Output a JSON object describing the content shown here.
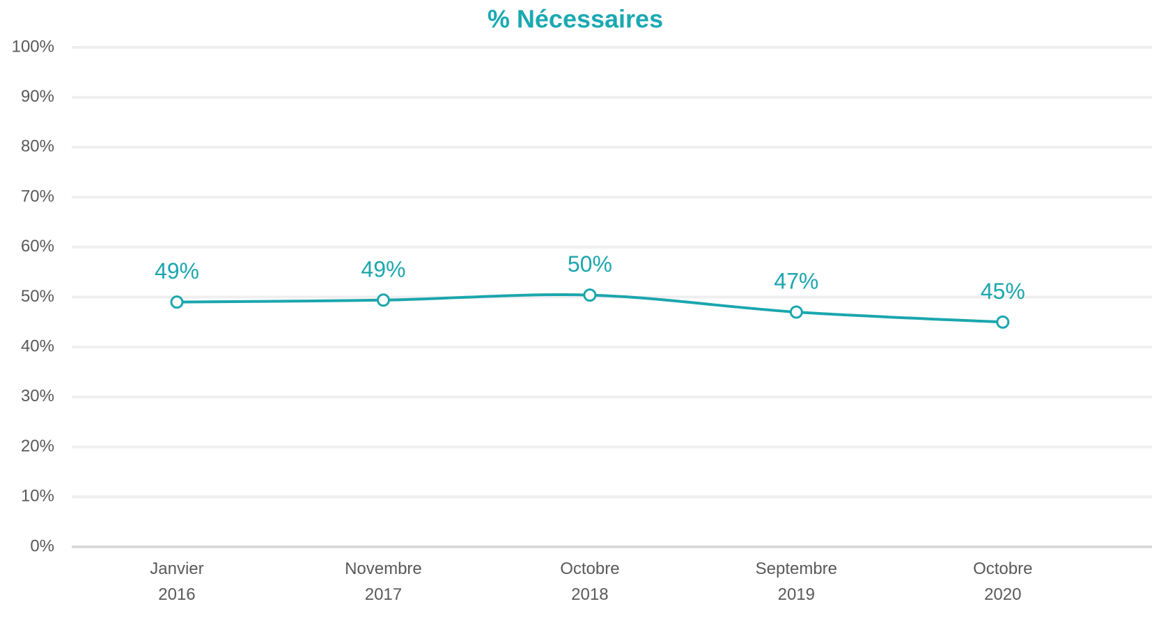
{
  "chart_data": {
    "type": "line",
    "title": "% Nécessaires",
    "categories": [
      "Janvier 2016",
      "Novembre 2017",
      "Octobre 2018",
      "Septembre 2019",
      "Octobre 2020"
    ],
    "series": [
      {
        "name": "% Nécessaires",
        "color": "#1ba6ae",
        "values": [
          49,
          49.4,
          50.4,
          47,
          45
        ],
        "value_labels": [
          "49%",
          "49%",
          "50%",
          "47%",
          "45%"
        ]
      }
    ],
    "ylim": [
      0,
      100
    ],
    "yticks": [
      {
        "value": 0,
        "label": "0%"
      },
      {
        "value": 10,
        "label": "10%"
      },
      {
        "value": 20,
        "label": "20%"
      },
      {
        "value": 30,
        "label": "30%"
      },
      {
        "value": 40,
        "label": "40%"
      },
      {
        "value": 50,
        "label": "50%"
      },
      {
        "value": 60,
        "label": "60%"
      },
      {
        "value": 70,
        "label": "70%"
      },
      {
        "value": 80,
        "label": "80%"
      },
      {
        "value": 90,
        "label": "90%"
      },
      {
        "value": 100,
        "label": "100%"
      }
    ],
    "grid": true
  }
}
